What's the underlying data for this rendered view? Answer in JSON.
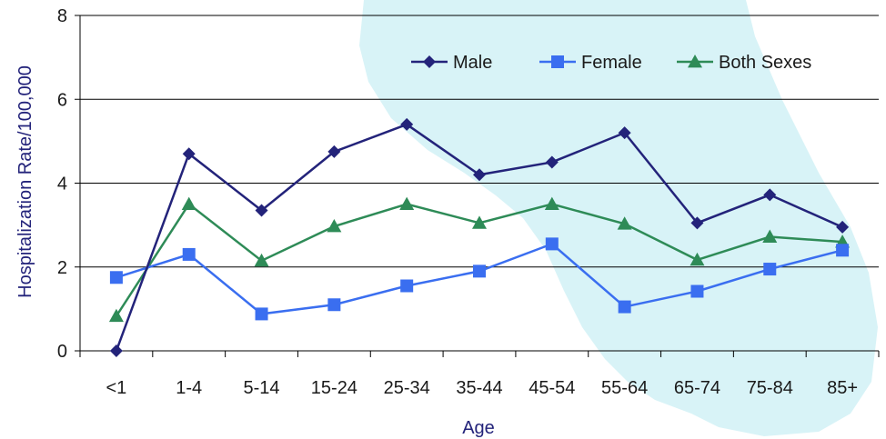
{
  "chart_data": {
    "type": "line",
    "title": "",
    "xlabel": "Age",
    "ylabel": "Hospitalization Rate/100,000",
    "ylim": [
      0,
      8
    ],
    "yticks": [
      0,
      2,
      4,
      6,
      8
    ],
    "grid": true,
    "legend_position": "top-right",
    "categories": [
      "<1",
      "1-4",
      "5-14",
      "15-24",
      "25-34",
      "35-44",
      "45-54",
      "55-64",
      "65-74",
      "75-84",
      "85+"
    ],
    "series": [
      {
        "name": "Male",
        "color": "#23237a",
        "marker": "diamond",
        "values": [
          0.0,
          4.7,
          3.35,
          4.75,
          5.4,
          4.2,
          4.5,
          5.2,
          3.05,
          3.72,
          2.95
        ]
      },
      {
        "name": "Female",
        "color": "#3a6ef0",
        "marker": "square",
        "values": [
          1.75,
          2.3,
          0.88,
          1.1,
          1.55,
          1.9,
          2.55,
          1.05,
          1.42,
          1.95,
          2.4
        ]
      },
      {
        "name": "Both Sexes",
        "color": "#2e8b57",
        "marker": "triangle",
        "values": [
          0.83,
          3.5,
          2.15,
          2.97,
          3.5,
          3.05,
          3.5,
          3.03,
          2.17,
          2.72,
          2.6
        ]
      }
    ]
  },
  "background": {
    "map_color": "#d8f3f7"
  }
}
